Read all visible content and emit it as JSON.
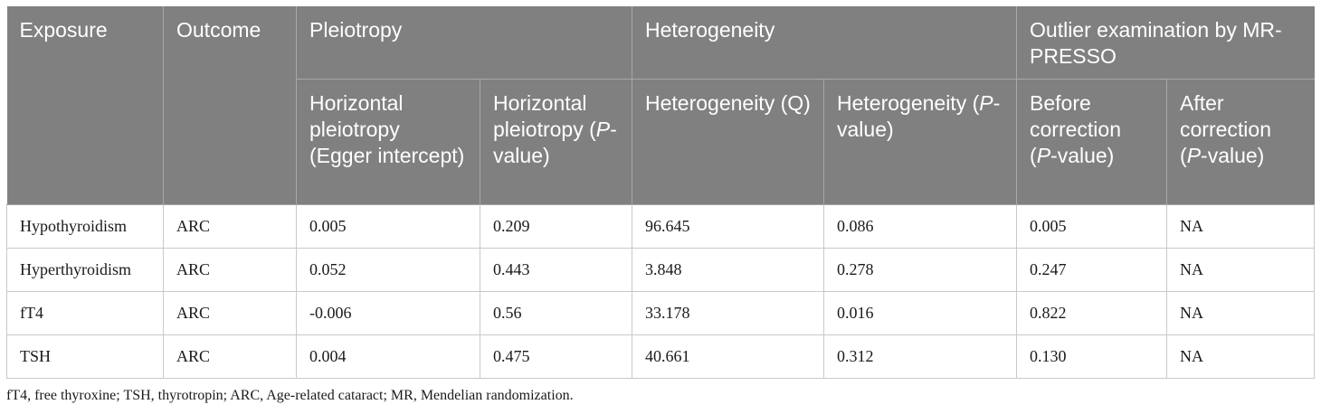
{
  "headers": {
    "exposure": "Exposure",
    "outcome": "Outcome",
    "pleiotropy": "Pleiotropy",
    "heterogeneity": "Heterogeneity",
    "outlier": "Outlier examination by MR-PRESSO",
    "sub": {
      "hp_egger": "Horizontal pleiotropy (Egger intercept)",
      "hp_p_prefix": "Horizontal pleiotropy (",
      "p": "P",
      "p_suffix": "-value)",
      "het_q": "Heterogeneity (Q)",
      "het_p_prefix": "Heterogeneity (",
      "before_prefix": "Before correction (",
      "after_prefix": "After correction ("
    }
  },
  "rows": [
    {
      "exposure": "Hypothyroidism",
      "outcome": "ARC",
      "egger": "0.005",
      "hp_p": "0.209",
      "het_q": "96.645",
      "het_p": "0.086",
      "before": "0.005",
      "after": "NA"
    },
    {
      "exposure": "Hyperthyroidism",
      "outcome": "ARC",
      "egger": "0.052",
      "hp_p": "0.443",
      "het_q": "3.848",
      "het_p": "0.278",
      "before": "0.247",
      "after": "NA"
    },
    {
      "exposure": "fT4",
      "outcome": "ARC",
      "egger": "-0.006",
      "hp_p": "0.56",
      "het_q": "33.178",
      "het_p": "0.016",
      "before": "0.822",
      "after": "NA"
    },
    {
      "exposure": "TSH",
      "outcome": "ARC",
      "egger": "0.004",
      "hp_p": "0.475",
      "het_q": "40.661",
      "het_p": "0.312",
      "before": "0.130",
      "after": "NA"
    }
  ],
  "footnote": "fT4, free thyroxine; TSH, thyrotropin; ARC, Age-related cataract; MR, Mendelian randomization."
}
